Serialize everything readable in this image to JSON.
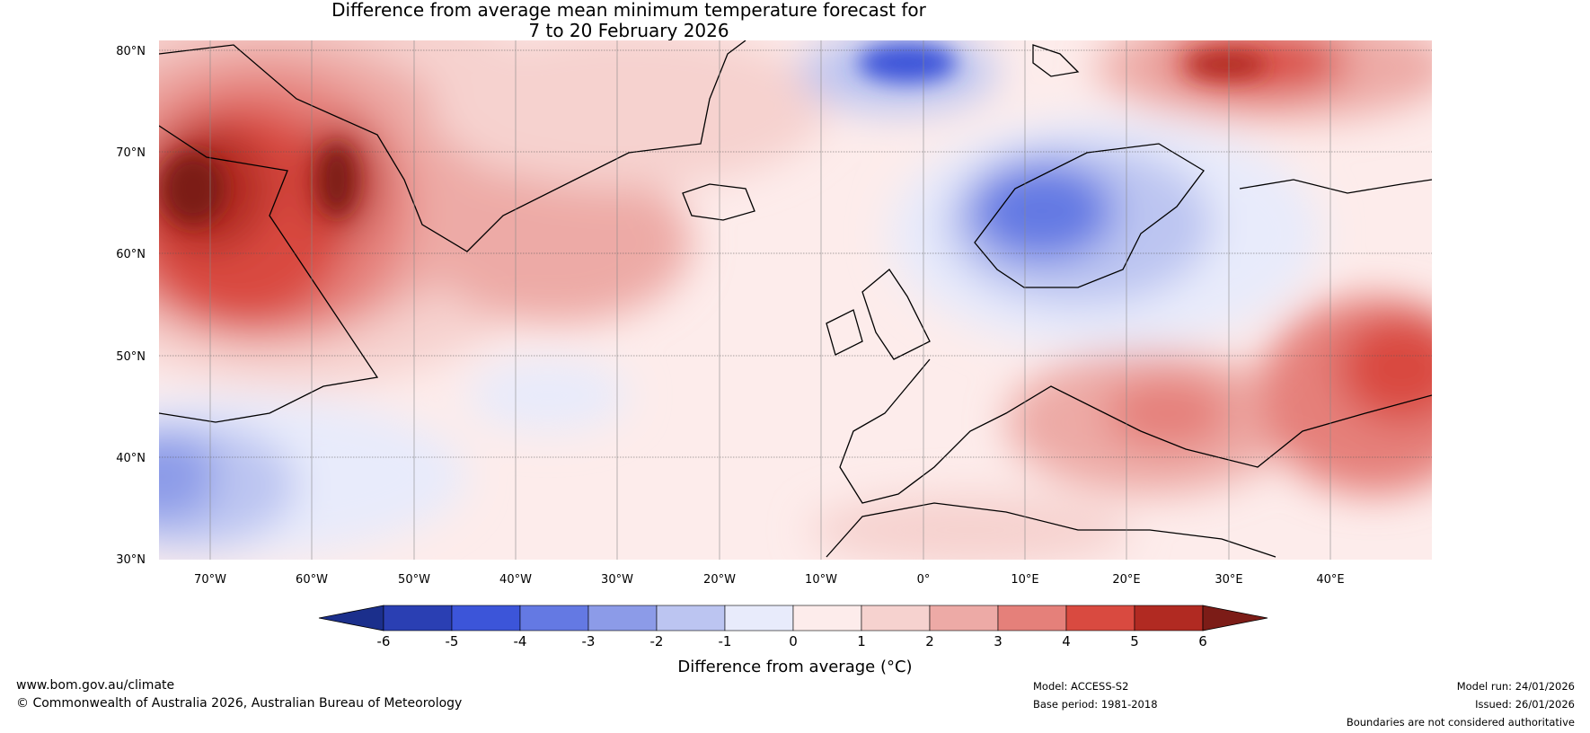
{
  "title_line1": "Difference from average mean minimum temperature forecast for",
  "title_line2": "7 to 20 February 2026",
  "map": {
    "region": "North Atlantic and Europe",
    "lon_range": [
      -75,
      50
    ],
    "lat_range": [
      30,
      81
    ],
    "lat_labels": [
      "80°N",
      "70°N",
      "60°N",
      "50°N",
      "40°N",
      "30°N"
    ],
    "lon_labels": [
      "70°W",
      "60°W",
      "50°W",
      "40°W",
      "30°W",
      "20°W",
      "10°W",
      "0°",
      "10°E",
      "20°E",
      "30°E",
      "40°E"
    ]
  },
  "colorbar": {
    "title": "Difference from average (°C)",
    "ticks": [
      "-6",
      "-5",
      "-4",
      "-3",
      "-2",
      "-1",
      "0",
      "1",
      "2",
      "3",
      "4",
      "5",
      "6"
    ],
    "colors": [
      "#1b2f8c",
      "#2a3fb3",
      "#3c55d9",
      "#6479e3",
      "#8c9be8",
      "#bcc5f1",
      "#e8ebfb",
      "#fdeceb",
      "#f6d2cf",
      "#edaaa6",
      "#e5807a",
      "#d94a40",
      "#b12a22",
      "#7c1c17"
    ]
  },
  "footer": {
    "website": "www.bom.gov.au/climate",
    "copyright": "© Commonwealth of Australia 2026, Australian Bureau of Meteorology",
    "model": "Model: ACCESS-S2",
    "base_period": "Base period: 1981-2018",
    "model_run": "Model run: 24/01/2026",
    "issued": "Issued: 26/01/2026",
    "disclaimer": "Boundaries are not considered authoritative"
  }
}
